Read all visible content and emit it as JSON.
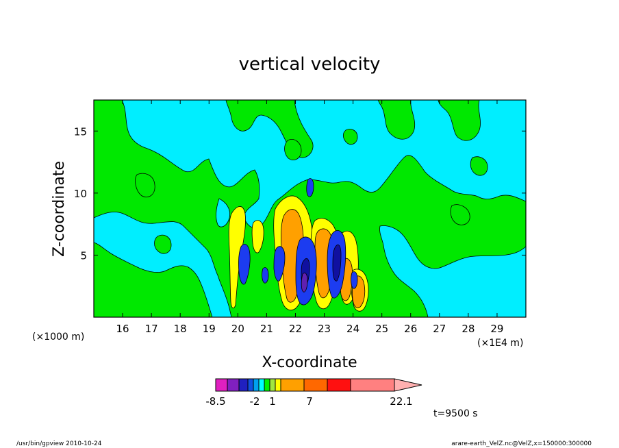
{
  "chart_data": {
    "type": "heatmap",
    "title": "vertical velocity",
    "xlabel": "X-coordinate",
    "ylabel": "Z-coordinate",
    "x_unit": "(×1E4 m)",
    "y_unit": "(×1000 m)",
    "x_ticks": [
      "16",
      "17",
      "18",
      "19",
      "20",
      "21",
      "22",
      "23",
      "24",
      "25",
      "26",
      "27",
      "28",
      "29"
    ],
    "y_ticks": [
      "5",
      "10",
      "15"
    ],
    "xlim": [
      15,
      30
    ],
    "ylim": [
      0,
      17.5
    ],
    "colorbar": {
      "labels": [
        "-8.5",
        "-2",
        "1",
        "7",
        "22.1"
      ],
      "colors": [
        "#e020c0",
        "#8020c0",
        "#2020c0",
        "#1050e0",
        "#00a0f0",
        "#00ffff",
        "#00f000",
        "#a0e640",
        "#ffff00",
        "#ffa000",
        "#ff6800",
        "#ff1010",
        "#ff8080",
        "#ffb0b0"
      ]
    },
    "palette": {
      "bg": "#00e800",
      "cyan": "#00eeff",
      "yellow": "#ffff00",
      "orange": "#ffa000",
      "blue": "#1c3cf0",
      "darkblue": "#1010a0",
      "purple": "#6020b0"
    },
    "time_label": "t=9500 s"
  },
  "footer": {
    "left": "/usr/bin/gpview   2010-10-24",
    "right": "arare-earth_VelZ.nc@VelZ,x=150000:300000"
  }
}
